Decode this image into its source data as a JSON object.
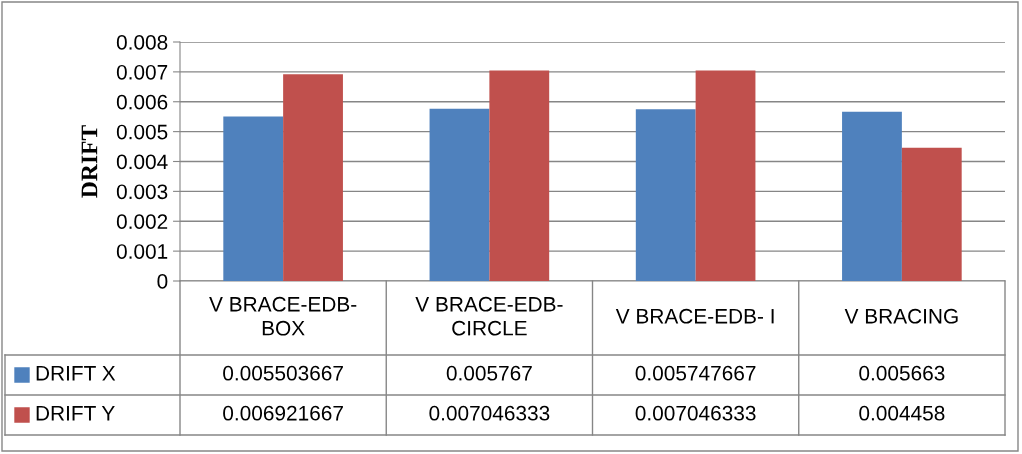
{
  "chart_data": {
    "type": "bar",
    "ylabel": "DRIFT",
    "categories": [
      "V BRACE-EDB-BOX",
      "V BRACE-EDB-CIRCLE",
      "V BRACE-EDB- I",
      "V BRACING"
    ],
    "series": [
      {
        "name": "DRIFT X",
        "color": "#4f81bd",
        "values": [
          0.005503667,
          0.005767,
          0.005747667,
          0.005663
        ]
      },
      {
        "name": "DRIFT Y",
        "color": "#c0504d",
        "values": [
          0.006921667,
          0.007046333,
          0.007046333,
          0.004458
        ]
      }
    ],
    "ylim": [
      0,
      0.008
    ],
    "yticks": [
      0,
      0.001,
      0.002,
      0.003,
      0.004,
      0.005,
      0.006,
      0.007,
      0.008
    ],
    "grid": "y",
    "legend": "bottom",
    "data_labels": true
  }
}
